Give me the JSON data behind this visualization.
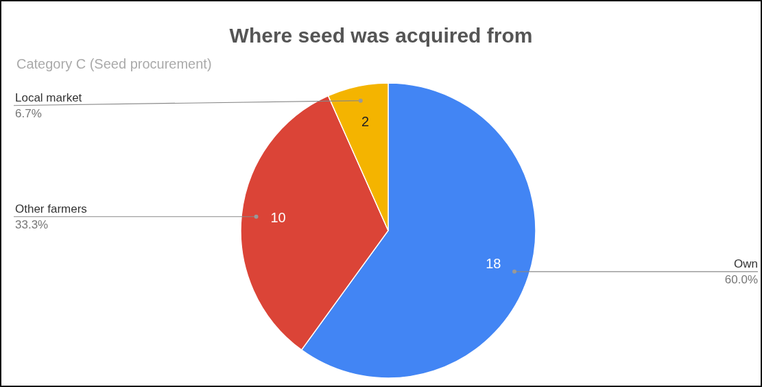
{
  "chart_data": {
    "type": "pie",
    "title": "Where seed was acquired from",
    "subtitle": "Category C (Seed procurement)",
    "categories": [
      "Own",
      "Other farmers",
      "Local market"
    ],
    "values": [
      18,
      10,
      2
    ],
    "colors": [
      "#4285f4",
      "#db4437",
      "#f4b400"
    ],
    "data_labels": true,
    "annotations": [
      {
        "text": "60.0%",
        "x": "Own"
      },
      {
        "text": "33.3%",
        "x": "Other farmers"
      },
      {
        "text": "6.7%",
        "x": "Local market"
      }
    ]
  }
}
